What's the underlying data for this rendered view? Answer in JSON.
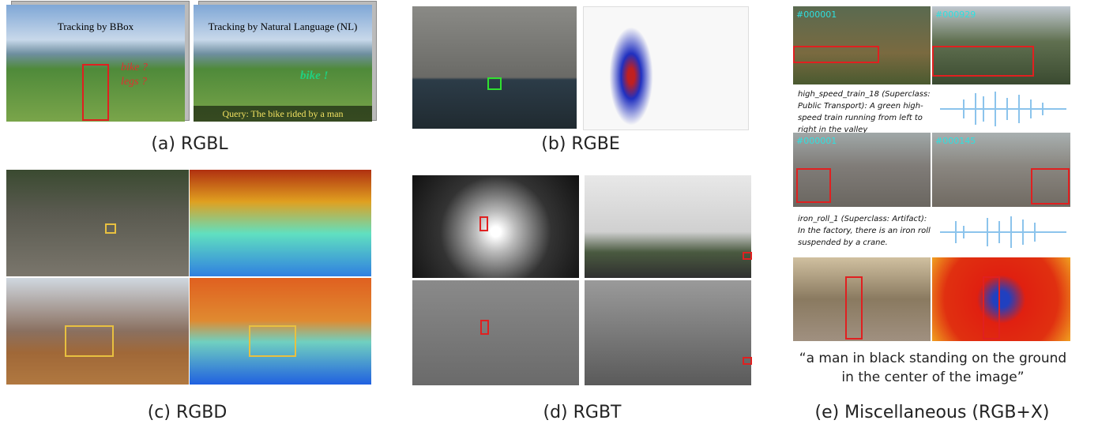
{
  "panels": [
    {
      "caption": "(a) RGBL",
      "left_title": "Tracking by BBox",
      "right_title": "Tracking by Natural Language (NL)",
      "guess_1": "bike ?",
      "guess_2": "legs ?",
      "answer": "bike !",
      "query": "Query: The bike rided by a man"
    },
    {
      "caption": "(b) RGBE"
    },
    {
      "caption": "(c) RGBD"
    },
    {
      "caption": "(d) RGBT"
    },
    {
      "caption": "(e) Miscellaneous (RGB+X)",
      "frames": [
        "#000001",
        "#000929",
        "#000001",
        "#000145"
      ],
      "descriptions": [
        "high_speed_train_18 (Superclass: Public Transport): A green high-speed train running from left to right in the valley",
        "iron_roll_1 (Superclass: Artifact): In the factory, there is an iron roll suspended by a crane."
      ],
      "quote": "“a man in black standing on the ground in the center of the image”"
    }
  ]
}
